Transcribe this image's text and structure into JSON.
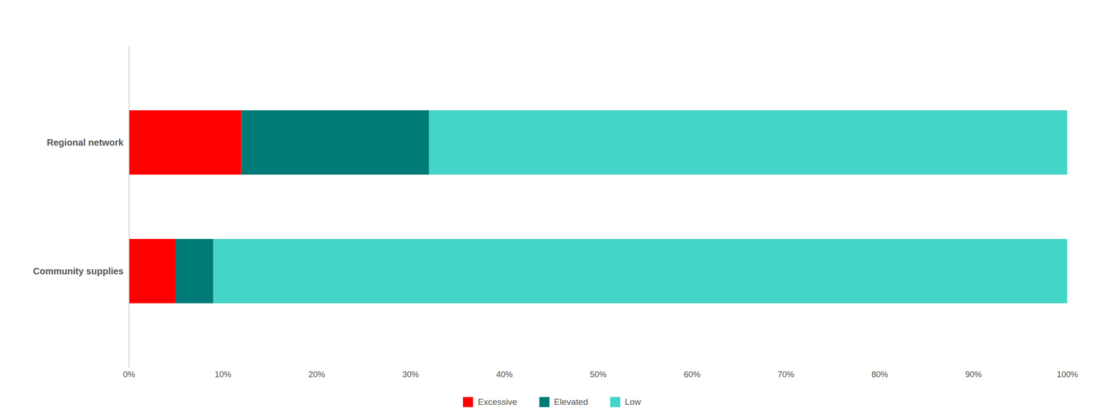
{
  "chart_data": {
    "type": "bar",
    "orientation": "horizontal",
    "stacked": true,
    "categories": [
      "Community supplies",
      "Regional network"
    ],
    "series": [
      {
        "name": "Excessive",
        "color": "#ff0000",
        "values": [
          5,
          12
        ]
      },
      {
        "name": "Elevated",
        "color": "#007b78",
        "values": [
          4,
          20
        ]
      },
      {
        "name": "Low",
        "color": "#45d4c8",
        "values": [
          91,
          68
        ]
      }
    ],
    "xlim": [
      0,
      100
    ],
    "xticks": [
      {
        "value": 0,
        "label": "0%"
      },
      {
        "value": 10,
        "label": "10%"
      },
      {
        "value": 20,
        "label": "20%"
      },
      {
        "value": 30,
        "label": "30%"
      },
      {
        "value": 40,
        "label": "40%"
      },
      {
        "value": 50,
        "label": "50%"
      },
      {
        "value": 60,
        "label": "60%"
      },
      {
        "value": 70,
        "label": "70%"
      },
      {
        "value": 80,
        "label": "80%"
      },
      {
        "value": 90,
        "label": "90%"
      },
      {
        "value": 100,
        "label": "100%"
      }
    ],
    "grid": false,
    "legend": "bottom"
  }
}
